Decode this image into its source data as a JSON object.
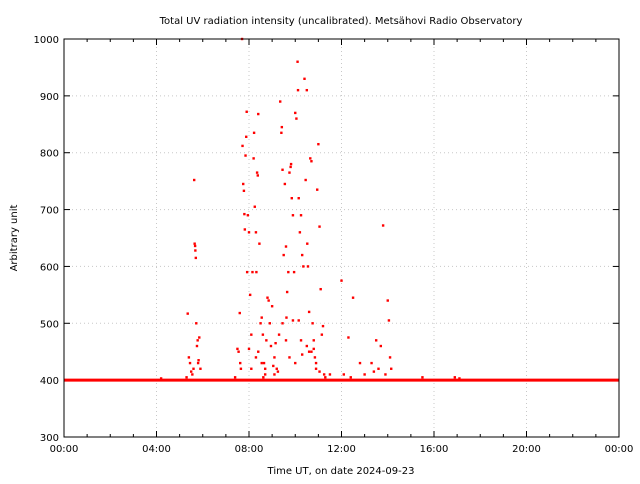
{
  "chart_data": {
    "type": "scatter",
    "title": "Total UV radiation intensity (uncalibrated). Metsähovi Radio Observatory",
    "xlabel": "Time UT, on date 2024-09-23",
    "ylabel": "Arbitrary unit",
    "xlim": [
      0,
      24
    ],
    "ylim": [
      300,
      1000
    ],
    "x_ticks": [
      0,
      4,
      8,
      12,
      16,
      20,
      24
    ],
    "x_tick_labels": [
      "00:00",
      "04:00",
      "08:00",
      "12:00",
      "16:00",
      "20:00",
      "00:00"
    ],
    "y_ticks": [
      300,
      400,
      500,
      600,
      700,
      800,
      900,
      1000
    ],
    "y_tick_labels": [
      "300",
      "400",
      "500",
      "600",
      "700",
      "800",
      "900",
      "1000"
    ],
    "grid": true,
    "color": "#ff0000",
    "baseline": {
      "value": 400,
      "ranges": [
        [
          0,
          24
        ]
      ]
    },
    "points": [
      [
        4.2,
        403
      ],
      [
        5.3,
        405
      ],
      [
        5.35,
        517
      ],
      [
        5.4,
        440
      ],
      [
        5.45,
        430
      ],
      [
        5.5,
        415
      ],
      [
        5.55,
        410
      ],
      [
        5.6,
        420
      ],
      [
        5.63,
        752
      ],
      [
        5.65,
        640
      ],
      [
        5.67,
        636
      ],
      [
        5.68,
        628
      ],
      [
        5.7,
        615
      ],
      [
        5.72,
        500
      ],
      [
        5.75,
        460
      ],
      [
        5.78,
        470
      ],
      [
        5.8,
        430
      ],
      [
        5.82,
        435
      ],
      [
        5.85,
        475
      ],
      [
        5.9,
        420
      ],
      [
        7.4,
        405
      ],
      [
        7.5,
        455
      ],
      [
        7.55,
        450
      ],
      [
        7.6,
        518
      ],
      [
        7.62,
        430
      ],
      [
        7.65,
        420
      ],
      [
        7.7,
        1000
      ],
      [
        7.72,
        812
      ],
      [
        7.75,
        745
      ],
      [
        7.78,
        733
      ],
      [
        7.8,
        692
      ],
      [
        7.82,
        665
      ],
      [
        7.85,
        795
      ],
      [
        7.88,
        828
      ],
      [
        7.9,
        872
      ],
      [
        7.92,
        590
      ],
      [
        7.95,
        690
      ],
      [
        8.0,
        660
      ],
      [
        8.05,
        550
      ],
      [
        8.1,
        480
      ],
      [
        8.15,
        590
      ],
      [
        8.2,
        790
      ],
      [
        8.22,
        835
      ],
      [
        8.25,
        705
      ],
      [
        8.3,
        660
      ],
      [
        8.32,
        590
      ],
      [
        8.35,
        765
      ],
      [
        8.38,
        760
      ],
      [
        8.4,
        868
      ],
      [
        8.45,
        640
      ],
      [
        8.5,
        500
      ],
      [
        8.55,
        510
      ],
      [
        8.6,
        480
      ],
      [
        8.62,
        405
      ],
      [
        8.65,
        430
      ],
      [
        8.7,
        420
      ],
      [
        8.75,
        470
      ],
      [
        8.8,
        545
      ],
      [
        8.85,
        540
      ],
      [
        8.9,
        500
      ],
      [
        8.95,
        460
      ],
      [
        9.0,
        530
      ],
      [
        9.05,
        425
      ],
      [
        9.1,
        440
      ],
      [
        9.2,
        420
      ],
      [
        9.3,
        480
      ],
      [
        9.35,
        890
      ],
      [
        9.4,
        835
      ],
      [
        9.42,
        845
      ],
      [
        9.45,
        770
      ],
      [
        9.5,
        620
      ],
      [
        9.55,
        745
      ],
      [
        9.6,
        635
      ],
      [
        9.62,
        510
      ],
      [
        9.65,
        555
      ],
      [
        9.7,
        590
      ],
      [
        9.75,
        765
      ],
      [
        9.8,
        775
      ],
      [
        9.82,
        780
      ],
      [
        9.85,
        720
      ],
      [
        9.9,
        690
      ],
      [
        9.95,
        590
      ],
      [
        10.0,
        870
      ],
      [
        10.05,
        860
      ],
      [
        10.1,
        960
      ],
      [
        10.12,
        910
      ],
      [
        10.15,
        720
      ],
      [
        10.2,
        660
      ],
      [
        10.25,
        690
      ],
      [
        10.3,
        620
      ],
      [
        10.35,
        600
      ],
      [
        10.4,
        930
      ],
      [
        10.45,
        752
      ],
      [
        10.5,
        910
      ],
      [
        10.52,
        640
      ],
      [
        10.55,
        600
      ],
      [
        10.6,
        450
      ],
      [
        10.65,
        790
      ],
      [
        10.7,
        785
      ],
      [
        10.75,
        500
      ],
      [
        10.8,
        470
      ],
      [
        10.85,
        440
      ],
      [
        10.9,
        420
      ],
      [
        10.95,
        735
      ],
      [
        11.0,
        815
      ],
      [
        11.05,
        670
      ],
      [
        11.1,
        560
      ],
      [
        11.15,
        480
      ],
      [
        11.2,
        495
      ],
      [
        11.25,
        410
      ],
      [
        8.0,
        455
      ],
      [
        8.1,
        420
      ],
      [
        8.4,
        450
      ],
      [
        8.7,
        410
      ],
      [
        9.1,
        410
      ],
      [
        9.6,
        470
      ],
      [
        9.9,
        505
      ],
      [
        10.0,
        430
      ],
      [
        10.3,
        445
      ],
      [
        10.5,
        460
      ],
      [
        10.7,
        450
      ],
      [
        10.9,
        430
      ],
      [
        11.05,
        415
      ],
      [
        9.25,
        415
      ],
      [
        9.45,
        500
      ],
      [
        10.15,
        505
      ],
      [
        10.6,
        520
      ],
      [
        8.3,
        440
      ],
      [
        8.55,
        430
      ],
      [
        9.15,
        465
      ],
      [
        9.75,
        440
      ],
      [
        10.25,
        470
      ],
      [
        10.8,
        455
      ],
      [
        11.3,
        405
      ],
      [
        11.5,
        410
      ],
      [
        12.0,
        575
      ],
      [
        12.1,
        410
      ],
      [
        12.3,
        475
      ],
      [
        12.4,
        405
      ],
      [
        12.5,
        545
      ],
      [
        12.8,
        430
      ],
      [
        13.0,
        410
      ],
      [
        13.3,
        430
      ],
      [
        13.4,
        415
      ],
      [
        13.5,
        470
      ],
      [
        13.6,
        420
      ],
      [
        13.7,
        460
      ],
      [
        13.8,
        672
      ],
      [
        13.9,
        410
      ],
      [
        14.0,
        540
      ],
      [
        14.05,
        505
      ],
      [
        14.1,
        440
      ],
      [
        14.15,
        420
      ],
      [
        15.5,
        405
      ],
      [
        16.9,
        405
      ],
      [
        17.1,
        403
      ]
    ]
  }
}
